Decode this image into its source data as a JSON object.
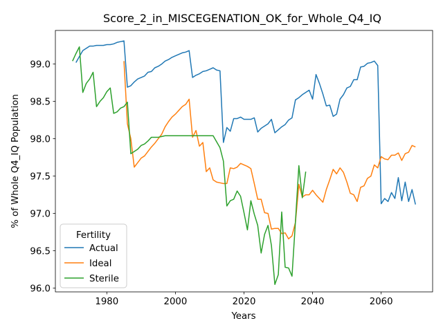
{
  "chart_data": {
    "type": "line",
    "title": "Score_2_in_MISCEGENATION_OK_for_Whole_Q4_IQ",
    "xlabel": "Years",
    "ylabel": "% of Whole Q4_IQ Population",
    "xlim": [
      1965,
      2075
    ],
    "ylim": [
      95.95,
      99.45
    ],
    "xticks": [
      1980,
      2000,
      2020,
      2040,
      2060
    ],
    "yticks": [
      96.0,
      96.5,
      97.0,
      97.5,
      98.0,
      98.5,
      99.0
    ],
    "xtick_labels": [
      "1980",
      "2000",
      "2020",
      "2040",
      "2060"
    ],
    "ytick_labels": [
      "96.0",
      "96.5",
      "97.0",
      "97.5",
      "98.0",
      "98.5",
      "99.0"
    ],
    "legend": {
      "title": "Fertility",
      "position": "lower-left"
    },
    "series": [
      {
        "name": "Actual",
        "color": "#1f77b4",
        "x": [
          1971,
          1972,
          1973,
          1974,
          1975,
          1976,
          1977,
          1978,
          1979,
          1980,
          1981,
          1982,
          1983,
          1984,
          1985,
          1986,
          1987,
          1988,
          1989,
          1990,
          1991,
          1992,
          1993,
          1994,
          1995,
          1996,
          1997,
          1998,
          1999,
          2000,
          2001,
          2002,
          2003,
          2004,
          2005,
          2006,
          2007,
          2008,
          2009,
          2010,
          2011,
          2012,
          2013,
          2014,
          2015,
          2016,
          2017,
          2018,
          2019,
          2020,
          2021,
          2022,
          2023,
          2024,
          2025,
          2026,
          2027,
          2028,
          2029,
          2030,
          2031,
          2032,
          2033,
          2034,
          2035,
          2036,
          2037,
          2038,
          2039,
          2040,
          2041,
          2042,
          2043,
          2044,
          2045,
          2046,
          2047,
          2048,
          2049,
          2050,
          2051,
          2052,
          2053,
          2054,
          2055,
          2056,
          2057,
          2058,
          2059,
          2060,
          2061,
          2062,
          2063,
          2064,
          2065,
          2066,
          2067,
          2068,
          2069,
          2070
        ],
        "y": [
          99.02,
          99.1,
          99.18,
          99.21,
          99.24,
          99.24,
          99.25,
          99.25,
          99.25,
          99.26,
          99.26,
          99.27,
          99.29,
          99.3,
          99.31,
          98.69,
          98.71,
          98.76,
          98.8,
          98.82,
          98.84,
          98.89,
          98.9,
          98.95,
          98.97,
          99.0,
          99.04,
          99.06,
          99.09,
          99.11,
          99.13,
          99.15,
          99.16,
          99.18,
          98.82,
          98.85,
          98.87,
          98.9,
          98.91,
          98.93,
          98.95,
          98.92,
          98.91,
          97.95,
          98.15,
          98.1,
          98.27,
          98.27,
          98.29,
          98.26,
          98.26,
          98.26,
          98.28,
          98.09,
          98.14,
          98.17,
          98.2,
          98.26,
          98.08,
          98.12,
          98.16,
          98.19,
          98.25,
          98.28,
          98.52,
          98.55,
          98.59,
          98.62,
          98.65,
          98.53,
          98.86,
          98.74,
          98.6,
          98.44,
          98.45,
          98.3,
          98.33,
          98.53,
          98.59,
          98.68,
          98.7,
          98.79,
          98.79,
          98.96,
          98.97,
          99.01,
          99.02,
          99.04,
          98.98,
          97.13,
          97.2,
          97.16,
          97.28,
          97.2,
          97.48,
          97.17,
          97.42,
          97.16,
          97.32,
          97.12
        ]
      },
      {
        "name": "Ideal",
        "color": "#ff7f0e",
        "x": [
          1985,
          1986,
          1987,
          1988,
          1989,
          1990,
          1991,
          1992,
          1993,
          1994,
          1995,
          1996,
          1997,
          1998,
          1999,
          2000,
          2001,
          2002,
          2003,
          2004,
          2005,
          2006,
          2007,
          2008,
          2009,
          2010,
          2011,
          2012,
          2013,
          2014,
          2015,
          2016,
          2017,
          2018,
          2019,
          2020,
          2021,
          2022,
          2023,
          2024,
          2025,
          2026,
          2027,
          2028,
          2029,
          2030,
          2031,
          2032,
          2033,
          2034,
          2035,
          2036,
          2037,
          2038,
          2039,
          2040,
          2041,
          2042,
          2043,
          2044,
          2045,
          2046,
          2047,
          2048,
          2049,
          2050,
          2051,
          2052,
          2053,
          2054,
          2055,
          2056,
          2057,
          2058,
          2059,
          2060,
          2061,
          2062,
          2063,
          2064,
          2065,
          2066,
          2067,
          2068,
          2069,
          2070
        ],
        "y": [
          99.04,
          98.2,
          98.0,
          97.62,
          97.68,
          97.74,
          97.77,
          97.83,
          97.89,
          97.94,
          98.0,
          98.06,
          98.16,
          98.23,
          98.29,
          98.33,
          98.38,
          98.43,
          98.46,
          98.53,
          98.02,
          98.11,
          97.9,
          97.95,
          97.56,
          97.61,
          97.45,
          97.42,
          97.41,
          97.4,
          97.4,
          97.61,
          97.6,
          97.62,
          97.67,
          97.65,
          97.63,
          97.6,
          97.4,
          97.19,
          97.19,
          97.01,
          97.0,
          96.79,
          96.8,
          96.8,
          96.73,
          96.74,
          96.66,
          96.7,
          96.88,
          97.39,
          97.22,
          97.25,
          97.25,
          97.31,
          97.25,
          97.2,
          97.15,
          97.32,
          97.45,
          97.59,
          97.53,
          97.61,
          97.55,
          97.42,
          97.27,
          97.25,
          97.16,
          97.35,
          97.37,
          97.47,
          97.5,
          97.65,
          97.61,
          97.76,
          97.73,
          97.72,
          97.78,
          97.78,
          97.81,
          97.71,
          97.8,
          97.82,
          97.91,
          97.89
        ]
      },
      {
        "name": "Sterile",
        "color": "#2ca02c",
        "x": [
          1970,
          1971,
          1972,
          1973,
          1974,
          1975,
          1976,
          1977,
          1978,
          1979,
          1980,
          1981,
          1982,
          1983,
          1984,
          1985,
          1986,
          1987,
          1988,
          1989,
          1990,
          1991,
          1992,
          1993,
          1994,
          1995,
          1996,
          1997,
          1998,
          1999,
          2000,
          2001,
          2002,
          2003,
          2004,
          2005,
          2006,
          2007,
          2008,
          2009,
          2010,
          2011,
          2012,
          2013,
          2014,
          2015,
          2016,
          2017,
          2018,
          2019,
          2020,
          2021,
          2022,
          2023,
          2024,
          2025,
          2026,
          2027,
          2028,
          2029,
          2030,
          2031,
          2032,
          2033,
          2034,
          2035,
          2036,
          2037,
          2038
        ],
        "y": [
          99.04,
          99.14,
          99.23,
          98.62,
          98.74,
          98.8,
          98.89,
          98.43,
          98.5,
          98.55,
          98.63,
          98.68,
          98.34,
          98.36,
          98.41,
          98.43,
          98.49,
          97.8,
          97.83,
          97.86,
          97.91,
          97.93,
          97.97,
          98.02,
          98.02,
          98.02,
          98.03,
          98.04,
          98.04,
          98.04,
          98.04,
          98.04,
          98.04,
          98.04,
          98.04,
          98.04,
          98.04,
          98.04,
          98.04,
          98.04,
          98.04,
          98.04,
          97.96,
          97.88,
          97.7,
          97.1,
          97.17,
          97.19,
          97.3,
          97.23,
          97.01,
          96.78,
          97.17,
          96.99,
          96.84,
          96.47,
          96.72,
          96.84,
          96.57,
          96.05,
          96.18,
          97.02,
          96.28,
          96.27,
          96.16,
          96.89,
          97.64,
          97.21,
          97.56
        ]
      }
    ]
  }
}
